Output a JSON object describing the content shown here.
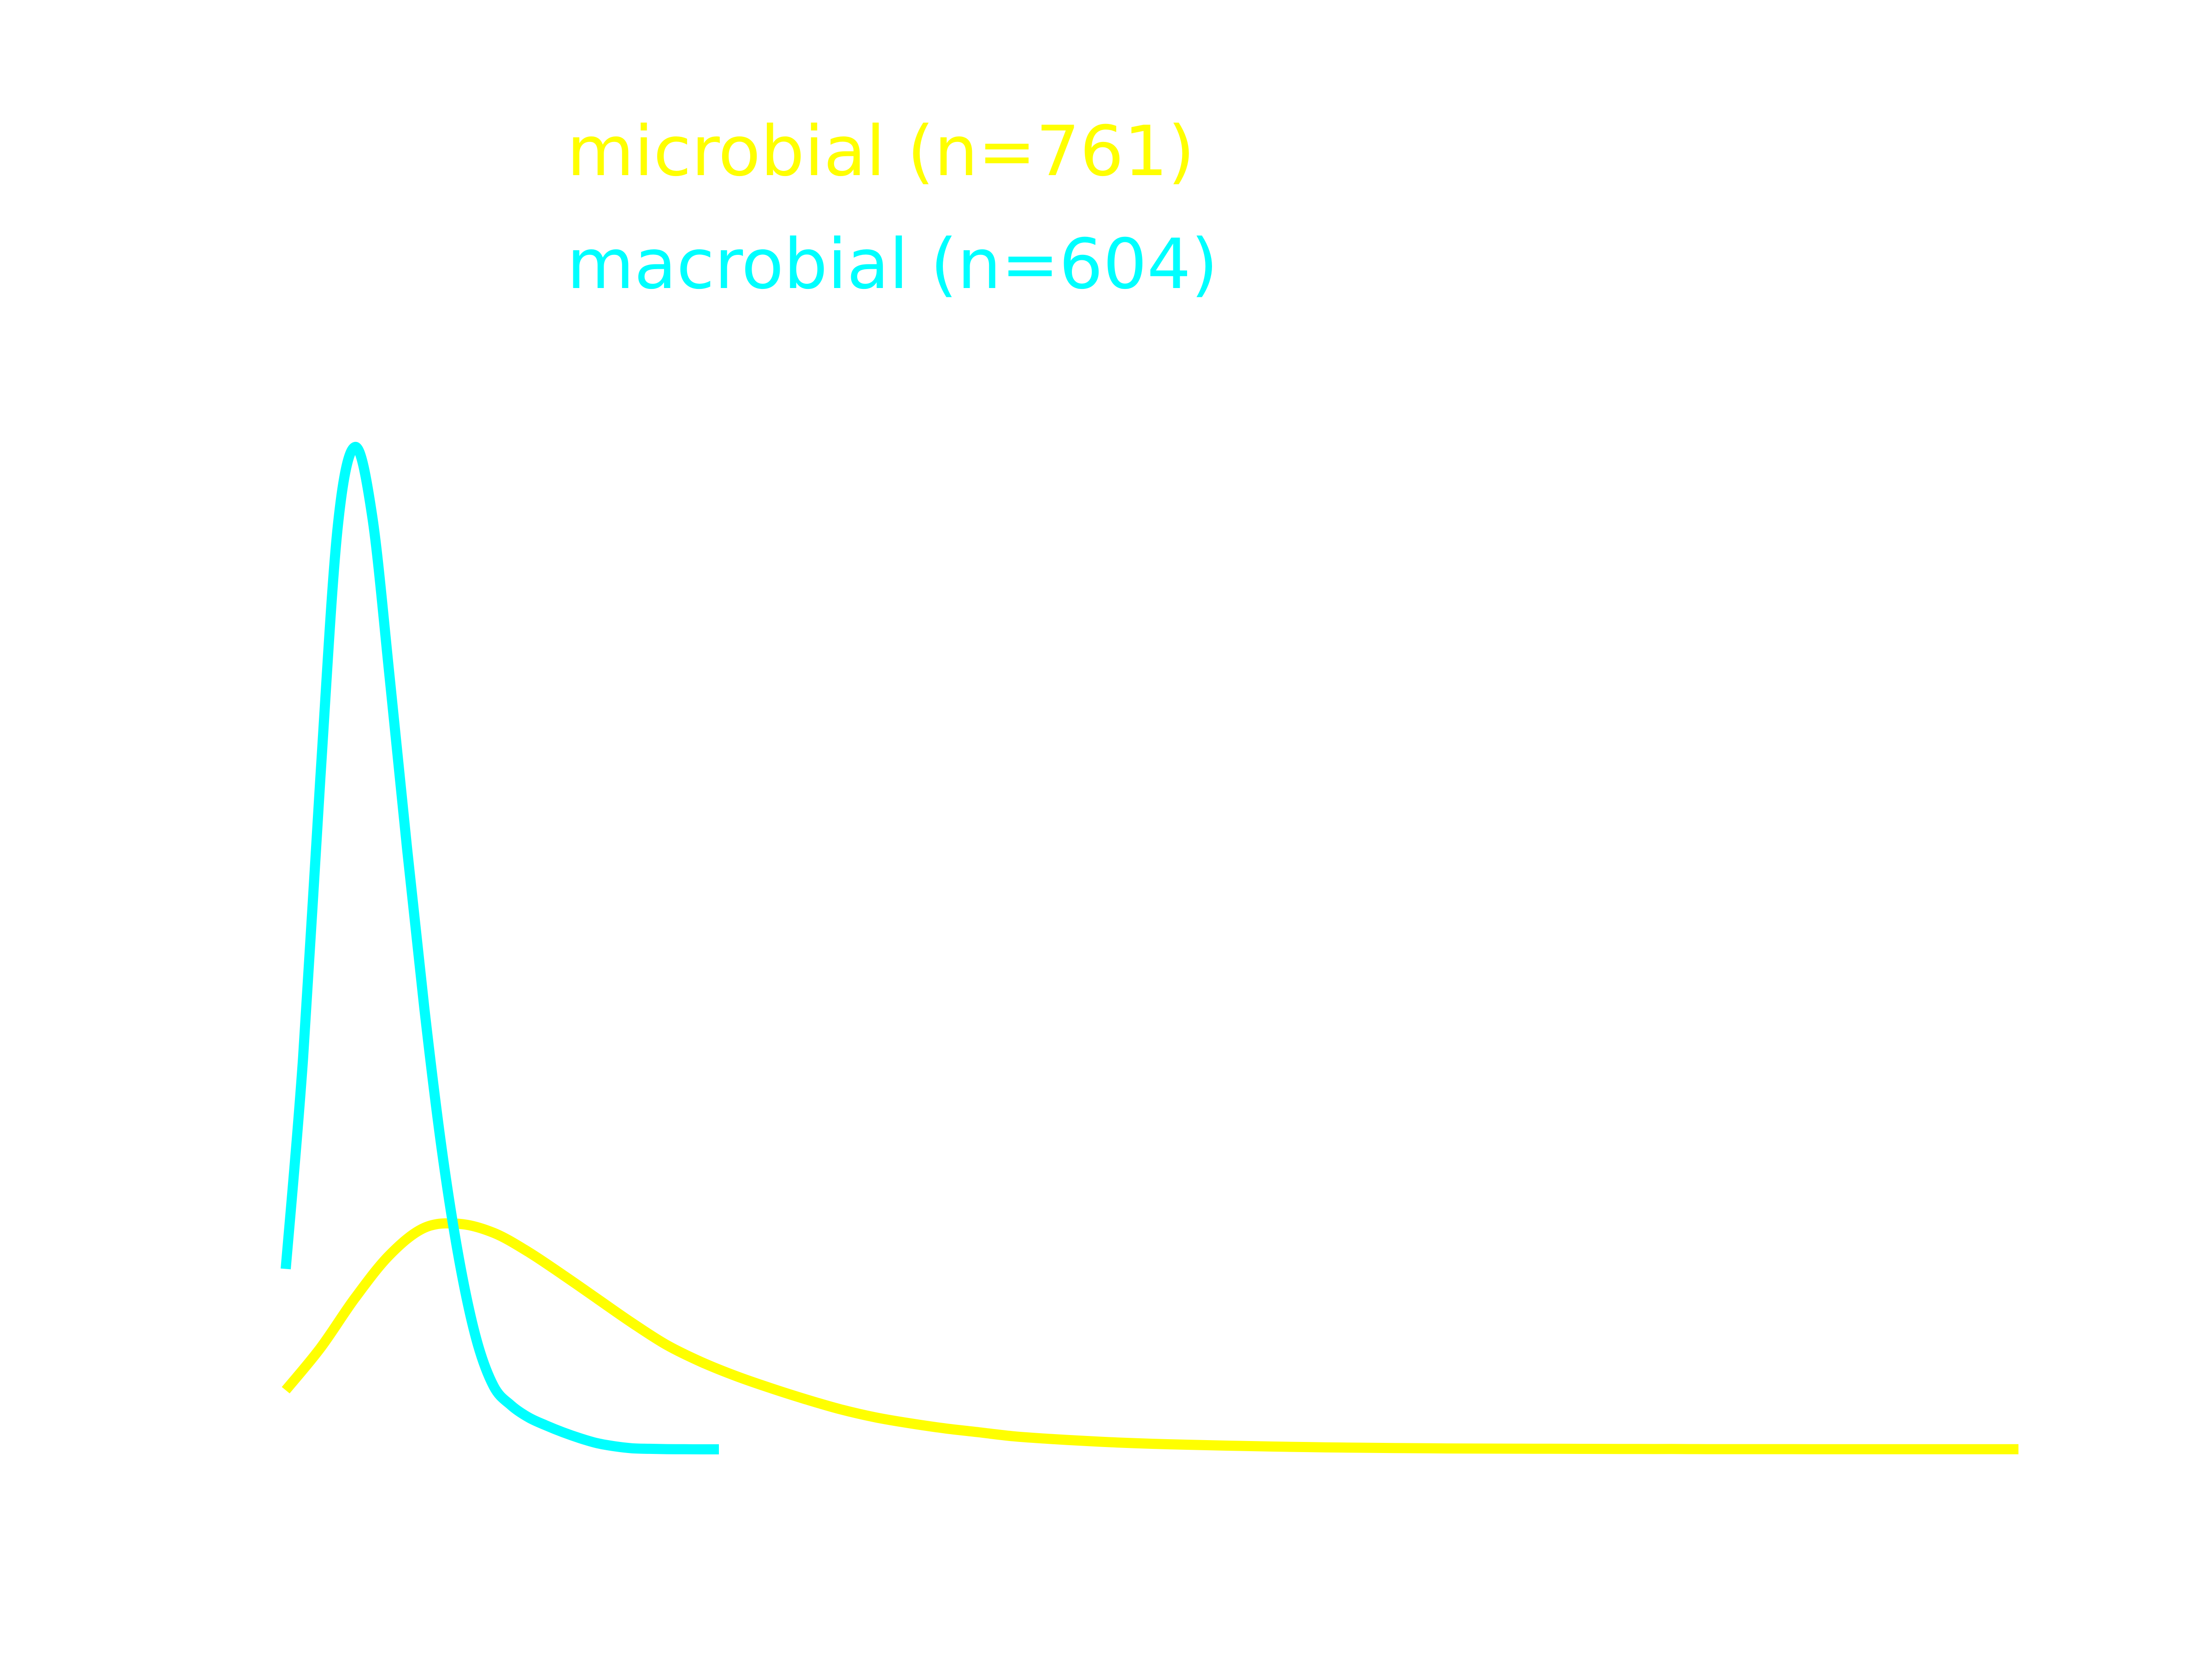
{
  "chart_data": {
    "type": "line",
    "title": "",
    "xlabel": "",
    "ylabel": "",
    "xlim": [
      0,
      100
    ],
    "ylim": [
      0,
      1
    ],
    "grid": false,
    "legend": {
      "placement": "top-left",
      "entries": [
        "microbial (n=761)",
        "macrobial (n=604)"
      ]
    },
    "series": [
      {
        "name": "microbial (n=761)",
        "color": "#ffff00",
        "x": [
          0,
          2,
          4,
          6,
          8,
          10,
          12,
          14,
          16,
          18,
          20,
          22,
          24,
          26,
          28,
          30,
          32,
          34,
          36,
          38,
          40,
          42,
          44,
          46,
          48,
          50,
          52,
          54,
          56,
          58,
          60,
          62,
          64,
          66,
          68,
          70,
          72,
          74,
          76,
          78,
          80,
          82,
          84,
          86,
          88,
          90,
          92,
          94,
          96,
          98,
          100
        ],
        "y": [
          0.059,
          0.101,
          0.151,
          0.194,
          0.221,
          0.225,
          0.216,
          0.197,
          0.174,
          0.15,
          0.126,
          0.104,
          0.087,
          0.073,
          0.061,
          0.05,
          0.04,
          0.032,
          0.026,
          0.021,
          0.017,
          0.013,
          0.0105,
          0.0085,
          0.0068,
          0.0055,
          0.0046,
          0.0038,
          0.0031,
          0.0025,
          0.002,
          0.0016,
          0.0013,
          0.001,
          0.0008,
          0.0007,
          0.0006,
          0.0005,
          0.0004,
          0.0003,
          0.0003,
          0.0002,
          0.0002,
          0.0002,
          0.0001,
          0.0001,
          0.0001,
          0.0001,
          0.0001,
          0.0001,
          0.0001
        ]
      },
      {
        "name": "macrobial (n=604)",
        "color": "#00ffff",
        "x": [
          0,
          1,
          2,
          3,
          4,
          5,
          6,
          7,
          8,
          9,
          10,
          11,
          12,
          13,
          14,
          15,
          16,
          17,
          18,
          19,
          20,
          21,
          22,
          23,
          24,
          25
        ],
        "y": [
          0.18,
          0.39,
          0.67,
          0.92,
          1.0,
          0.93,
          0.77,
          0.6,
          0.44,
          0.3,
          0.19,
          0.11,
          0.063,
          0.044,
          0.032,
          0.024,
          0.017,
          0.011,
          0.006,
          0.003,
          0.001,
          0.0005,
          0.0002,
          0.0001,
          0.0,
          0.0
        ]
      }
    ]
  }
}
